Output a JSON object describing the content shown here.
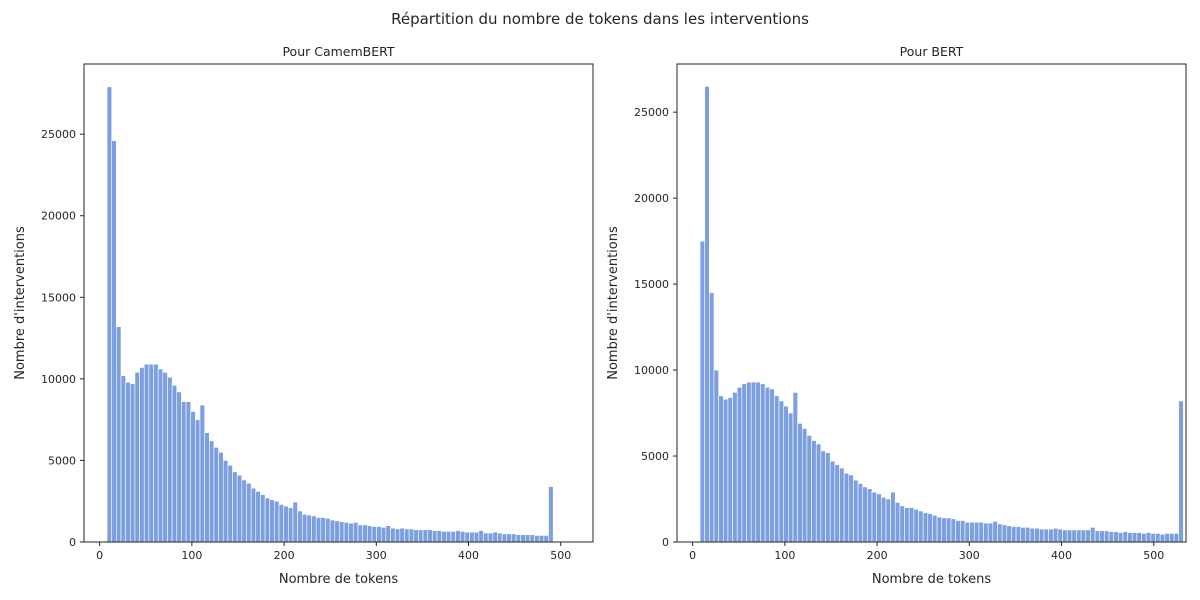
{
  "figure_title": "Répartition du nombre de tokens dans les interventions",
  "chart_data": [
    {
      "type": "bar",
      "title": "Pour CamemBERT",
      "xlabel": "Nombre de tokens",
      "ylabel": "Nombre d'interventions",
      "xlim": [
        -17,
        535
      ],
      "ylim": [
        0,
        29300
      ],
      "xticks": [
        0,
        100,
        200,
        300,
        400,
        500
      ],
      "yticks": [
        0,
        5000,
        10000,
        15000,
        20000,
        25000
      ],
      "bin_start": 8,
      "bin_width": 5.04,
      "color": "#7b9fe0",
      "values": [
        27900,
        24600,
        13200,
        10200,
        9800,
        9700,
        10400,
        10700,
        10900,
        10900,
        10900,
        10600,
        10400,
        10100,
        9600,
        9200,
        8600,
        8600,
        8000,
        7500,
        8400,
        6700,
        6200,
        5800,
        5500,
        5000,
        4700,
        4300,
        4100,
        3800,
        3600,
        3300,
        3100,
        2900,
        2700,
        2600,
        2500,
        2300,
        2200,
        2100,
        2450,
        1900,
        1700,
        1650,
        1600,
        1500,
        1500,
        1450,
        1350,
        1300,
        1250,
        1200,
        1150,
        1200,
        1050,
        1050,
        1000,
        950,
        950,
        900,
        1000,
        850,
        800,
        850,
        800,
        800,
        750,
        750,
        750,
        750,
        700,
        700,
        650,
        650,
        650,
        700,
        650,
        600,
        600,
        600,
        700,
        550,
        550,
        600,
        550,
        500,
        500,
        500,
        450,
        450,
        450,
        450,
        400,
        400,
        400,
        3400
      ]
    },
    {
      "type": "bar",
      "title": "Pour BERT",
      "xlabel": "Nombre de tokens",
      "ylabel": "Nombre d'interventions",
      "xlim": [
        -17,
        535
      ],
      "ylim": [
        0,
        27800
      ],
      "xticks": [
        0,
        100,
        200,
        300,
        400,
        500
      ],
      "yticks": [
        0,
        5000,
        10000,
        15000,
        20000,
        25000
      ],
      "bin_start": 8,
      "bin_width": 5.04,
      "color": "#7b9fe0",
      "values": [
        17500,
        26500,
        14500,
        10000,
        8500,
        8300,
        8400,
        8700,
        9000,
        9200,
        9300,
        9300,
        9300,
        9200,
        9000,
        8900,
        8500,
        8200,
        7900,
        7500,
        8700,
        6900,
        6600,
        6200,
        5900,
        5700,
        5300,
        5200,
        4700,
        4500,
        4300,
        4000,
        3900,
        3600,
        3400,
        3200,
        3100,
        2900,
        2800,
        2600,
        2500,
        2900,
        2300,
        2100,
        2000,
        2000,
        1900,
        1800,
        1700,
        1650,
        1550,
        1450,
        1400,
        1400,
        1350,
        1250,
        1250,
        1150,
        1150,
        1150,
        1150,
        1100,
        1100,
        1200,
        1050,
        1000,
        950,
        900,
        900,
        850,
        850,
        800,
        800,
        750,
        750,
        750,
        800,
        750,
        700,
        700,
        700,
        700,
        700,
        700,
        850,
        650,
        650,
        650,
        600,
        600,
        550,
        600,
        550,
        550,
        550,
        500,
        550,
        500,
        500,
        450,
        500,
        500,
        500,
        8200
      ]
    }
  ]
}
